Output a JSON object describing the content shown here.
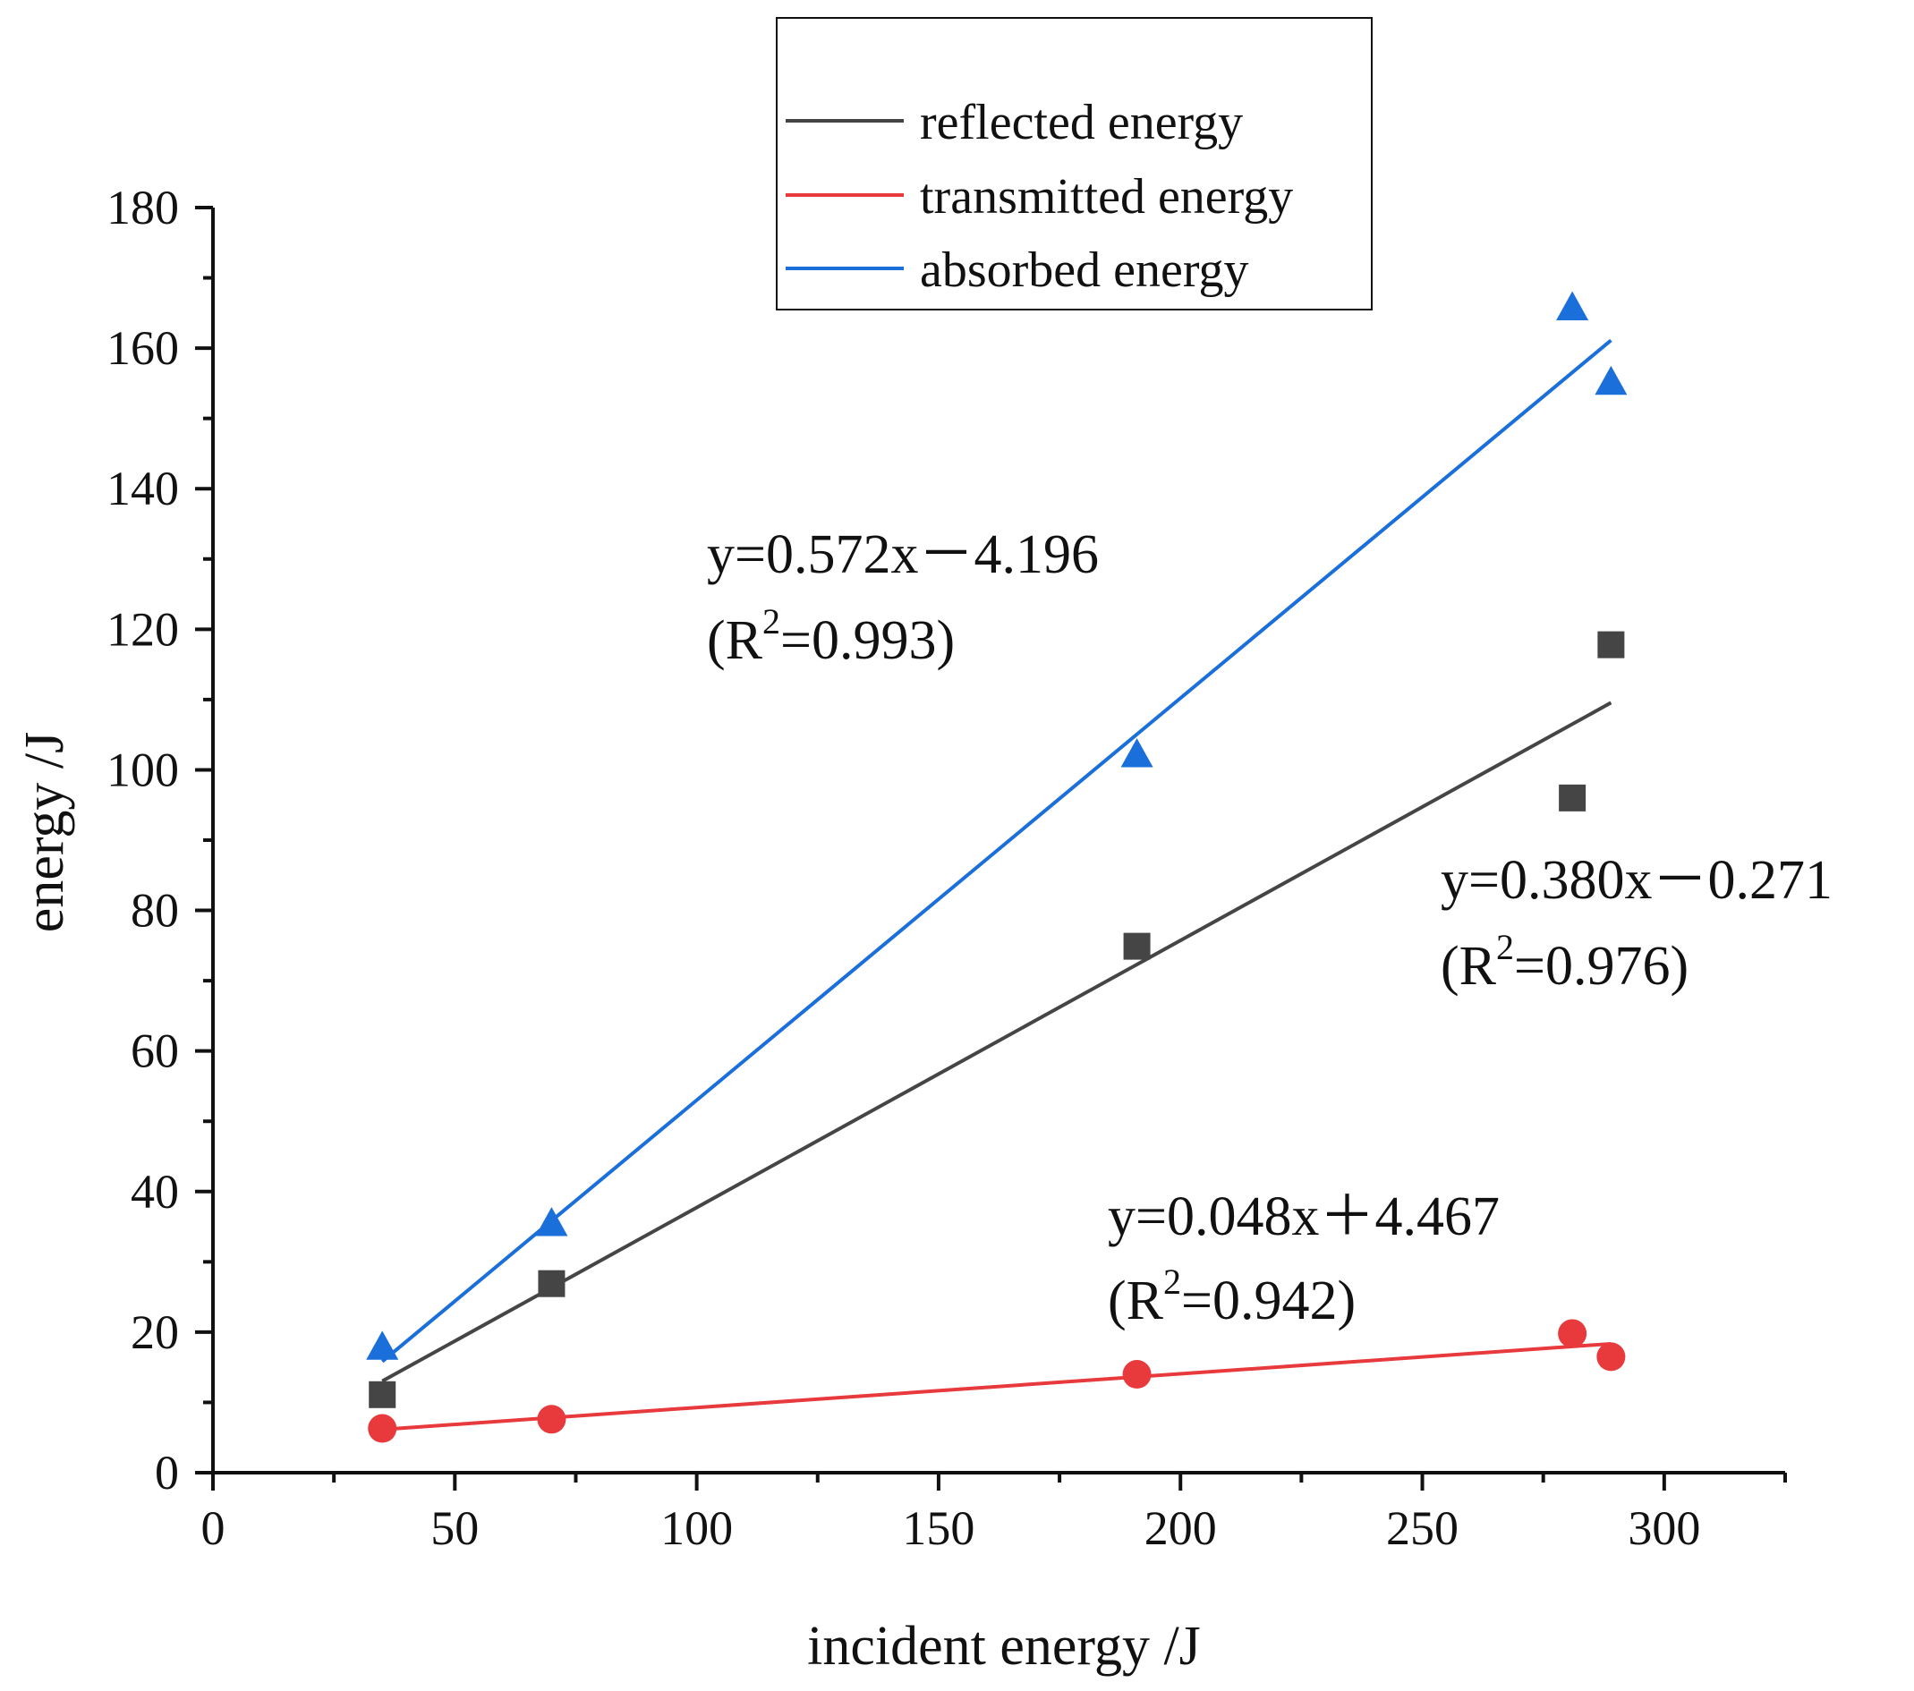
{
  "chart_data": {
    "type": "scatter",
    "title": "",
    "xlabel": "incident energy /J",
    "ylabel": "energy /J",
    "xlim": [
      0,
      325
    ],
    "ylim": [
      0,
      180
    ],
    "x_ticks": [
      0,
      50,
      100,
      150,
      200,
      250,
      300
    ],
    "y_ticks": [
      0,
      20,
      40,
      60,
      80,
      100,
      120,
      140,
      160,
      180
    ],
    "grid": false,
    "legend_position": "top-center",
    "series": [
      {
        "name": "reflected energy",
        "marker": "square",
        "color": "#454545",
        "x": [
          35,
          70,
          191,
          281,
          289
        ],
        "y": [
          11.1,
          26.9,
          74.9,
          96.0,
          117.8
        ],
        "fit": {
          "slope": 0.38,
          "intercept": -0.271,
          "x_range": [
            35,
            289
          ]
        },
        "equation": "y=0.380x－0.271",
        "r2_prefix": "(R",
        "r2_sup": "2",
        "r2_suffix": "=0.976)"
      },
      {
        "name": "transmitted energy",
        "marker": "circle",
        "color": "#e8393c",
        "x": [
          35,
          70,
          191,
          281,
          289
        ],
        "y": [
          6.3,
          7.6,
          14.0,
          19.8,
          16.5
        ],
        "fit": {
          "slope": 0.048,
          "intercept": 4.467,
          "x_range": [
            35,
            289
          ]
        },
        "equation": "y=0.048x＋4.467",
        "r2_prefix": "(R",
        "r2_sup": "2",
        "r2_suffix": "=0.942)"
      },
      {
        "name": "absorbed energy",
        "marker": "triangle",
        "color": "#1a6fdb",
        "x": [
          35,
          70,
          191,
          281,
          289
        ],
        "y": [
          17.9,
          35.5,
          102.2,
          165.8,
          155.2
        ],
        "fit": {
          "slope": 0.572,
          "intercept": -4.196,
          "x_range": [
            35,
            289
          ]
        },
        "equation": "y=0.572x－4.196",
        "r2_prefix": "(R",
        "r2_sup": "2",
        "r2_suffix": "=0.993)"
      }
    ]
  }
}
